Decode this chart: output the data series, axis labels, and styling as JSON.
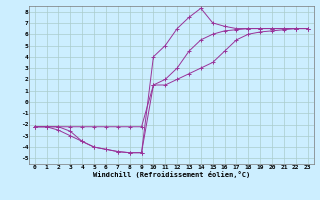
{
  "xlabel": "Windchill (Refroidissement éolien,°C)",
  "bg_color": "#cceeff",
  "grid_color": "#aacccc",
  "line_color": "#993399",
  "x_ticks": [
    0,
    1,
    2,
    3,
    4,
    5,
    6,
    7,
    8,
    9,
    10,
    11,
    12,
    13,
    14,
    15,
    16,
    17,
    18,
    19,
    20,
    21,
    22,
    23
  ],
  "y_ticks": [
    -5,
    -4,
    -3,
    -2,
    -1,
    0,
    1,
    2,
    3,
    4,
    5,
    6,
    7,
    8
  ],
  "xlim": [
    -0.5,
    23.5
  ],
  "ylim": [
    -5.5,
    8.5
  ],
  "line1_x": [
    0,
    1,
    2,
    3,
    4,
    5,
    6,
    7,
    8,
    9,
    10,
    11,
    12,
    13,
    14,
    15,
    16,
    17,
    18,
    19,
    20,
    21,
    22,
    23
  ],
  "line1_y": [
    -2.2,
    -2.2,
    -2.2,
    -2.6,
    -3.5,
    -4.0,
    -4.2,
    -4.4,
    -4.5,
    -4.5,
    1.5,
    1.5,
    2.0,
    2.5,
    3.0,
    3.5,
    4.5,
    5.5,
    6.0,
    6.2,
    6.3,
    6.4,
    6.5,
    6.5
  ],
  "line2_x": [
    0,
    1,
    2,
    3,
    4,
    5,
    6,
    7,
    8,
    9,
    10,
    11,
    12,
    13,
    14,
    15,
    16,
    17,
    18,
    19,
    20,
    21,
    22,
    23
  ],
  "line2_y": [
    -2.2,
    -2.2,
    -2.5,
    -3.0,
    -3.5,
    -4.0,
    -4.2,
    -4.4,
    -4.5,
    -4.5,
    4.0,
    5.0,
    6.5,
    7.5,
    8.3,
    7.0,
    6.7,
    6.5,
    6.5,
    6.5,
    6.5,
    6.5,
    6.5,
    6.5
  ],
  "line3_x": [
    0,
    1,
    2,
    3,
    4,
    5,
    6,
    7,
    8,
    9,
    10,
    11,
    12,
    13,
    14,
    15,
    16,
    17,
    18,
    19,
    20,
    21,
    22,
    23
  ],
  "line3_y": [
    -2.2,
    -2.2,
    -2.2,
    -2.2,
    -2.2,
    -2.2,
    -2.2,
    -2.2,
    -2.2,
    -2.2,
    1.5,
    2.0,
    3.0,
    4.5,
    5.5,
    6.0,
    6.3,
    6.4,
    6.5,
    6.5,
    6.5,
    6.5,
    6.5,
    6.5
  ]
}
